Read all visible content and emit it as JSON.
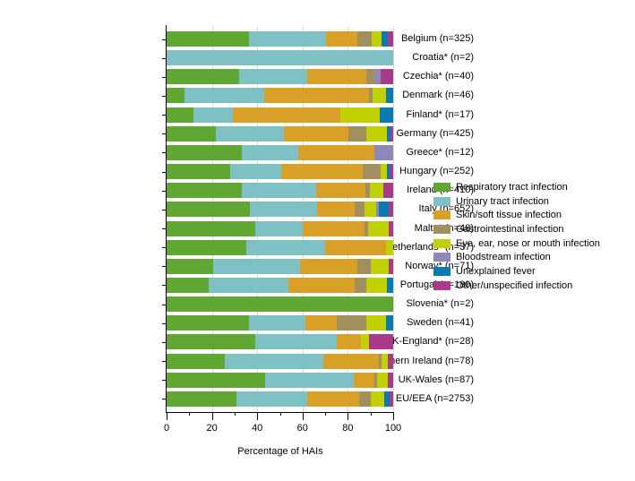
{
  "chart_data": {
    "type": "bar",
    "variant": "horizontal_stacked",
    "title": "",
    "xlabel": "Percentage of HAIs",
    "ylabel": "",
    "xlim": [
      0,
      100
    ],
    "grid": "vertical",
    "gridline_color": "#d9d9d9",
    "axis_color": "#000000",
    "legend_position": "right",
    "x_axis": {
      "major_tick_values": [
        0,
        20,
        40,
        60,
        80,
        100
      ],
      "major_tick_labels": [
        "0",
        "20",
        "40",
        "60",
        "80",
        "100"
      ],
      "minor_tick_values": [
        10,
        30,
        50,
        70,
        90
      ],
      "gridline_values": [
        20,
        40,
        60,
        80,
        100
      ]
    },
    "series": [
      {
        "name": "Respiratory tract infection",
        "color": "#60a632"
      },
      {
        "name": "Urinary tract infection",
        "color": "#7fc0c5"
      },
      {
        "name": "Skin/soft tissue infection",
        "color": "#d9a027"
      },
      {
        "name": "Gastrointestinal infection",
        "color": "#a28f5e"
      },
      {
        "name": "Eye, ear, nose or mouth infection",
        "color": "#c0d000"
      },
      {
        "name": "Bloodstream infection",
        "color": "#9087b9"
      },
      {
        "name": "Unexplained fever",
        "color": "#0a7ab0"
      },
      {
        "name": "Other/unspecified infection",
        "color": "#a93a8a"
      }
    ],
    "rows": [
      {
        "label": "Belgium (n=325)",
        "values": [
          36.3,
          34.0,
          13.8,
          6.3,
          4.3,
          0,
          2.8,
          2.5
        ]
      },
      {
        "label": "Croatia* (n=2)",
        "values": [
          0,
          100,
          0,
          0,
          0,
          0,
          0,
          0
        ]
      },
      {
        "label": "Czechia* (n=40)",
        "values": [
          32.1,
          29.8,
          26.2,
          3.8,
          0,
          2.5,
          0,
          5.6
        ]
      },
      {
        "label": "Denmark (n=46)",
        "values": [
          8.0,
          35.1,
          46.3,
          1.7,
          5.8,
          0,
          3.1,
          0
        ]
      },
      {
        "label": "Finland* (n=17)",
        "values": [
          11.8,
          17.6,
          47.1,
          0,
          17.6,
          0,
          5.9,
          0
        ]
      },
      {
        "label": "Germany (n=425)",
        "values": [
          21.6,
          30.2,
          28.5,
          7.8,
          9.0,
          0,
          1.6,
          1.3
        ]
      },
      {
        "label": "Greece* (n=12)",
        "values": [
          33.3,
          25.0,
          33.3,
          0,
          0,
          8.4,
          0,
          0
        ]
      },
      {
        "label": "Hungary (n=252)",
        "values": [
          28.2,
          22.2,
          36.0,
          7.9,
          2.9,
          0,
          1.2,
          1.6
        ]
      },
      {
        "label": "Ireland (n=410)",
        "values": [
          33.3,
          32.8,
          21.5,
          2.2,
          5.8,
          0,
          0,
          4.4
        ]
      },
      {
        "label": "Italy (n=652)",
        "values": [
          36.7,
          29.6,
          16.6,
          4.4,
          5.1,
          1.2,
          4.3,
          2.1
        ]
      },
      {
        "label": "Malta* (n=48)",
        "values": [
          39.2,
          20.9,
          27.2,
          1.6,
          9.0,
          0,
          0,
          2.1
        ]
      },
      {
        "label": "Netherlands* (n=37)",
        "values": [
          35.1,
          34.8,
          26.8,
          0,
          3.3,
          0,
          0,
          0
        ]
      },
      {
        "label": "Norway* (n=71)",
        "values": [
          20.4,
          38.4,
          25.4,
          5.8,
          7.9,
          0,
          0,
          2.1
        ]
      },
      {
        "label": "Portugal (n=180)",
        "values": [
          18.4,
          35.3,
          29.2,
          5.2,
          9.0,
          0,
          2.9,
          0
        ]
      },
      {
        "label": "Slovenia* (n=2)",
        "values": [
          100,
          0,
          0,
          0,
          0,
          0,
          0,
          0
        ]
      },
      {
        "label": "Sweden (n=41)",
        "values": [
          36.3,
          25.0,
          14.0,
          12.8,
          8.6,
          0,
          3.3,
          0
        ]
      },
      {
        "label": "UK-England* (n=28)",
        "values": [
          39.3,
          35.7,
          10.7,
          0,
          3.6,
          0,
          0,
          10.7
        ]
      },
      {
        "label": "UK-Northern Ireland (n=78)",
        "values": [
          25.6,
          43.6,
          24.4,
          1.3,
          2.6,
          0,
          0,
          2.5
        ]
      },
      {
        "label": "UK-Wales (n=87)",
        "values": [
          43.3,
          39.3,
          9.0,
          1.2,
          4.7,
          0,
          0,
          2.5
        ]
      },
      {
        "label": "EU/EEA (n=2753)",
        "values": [
          30.9,
          31.0,
          23.0,
          5.1,
          5.9,
          0,
          2.4,
          1.7
        ]
      }
    ]
  }
}
